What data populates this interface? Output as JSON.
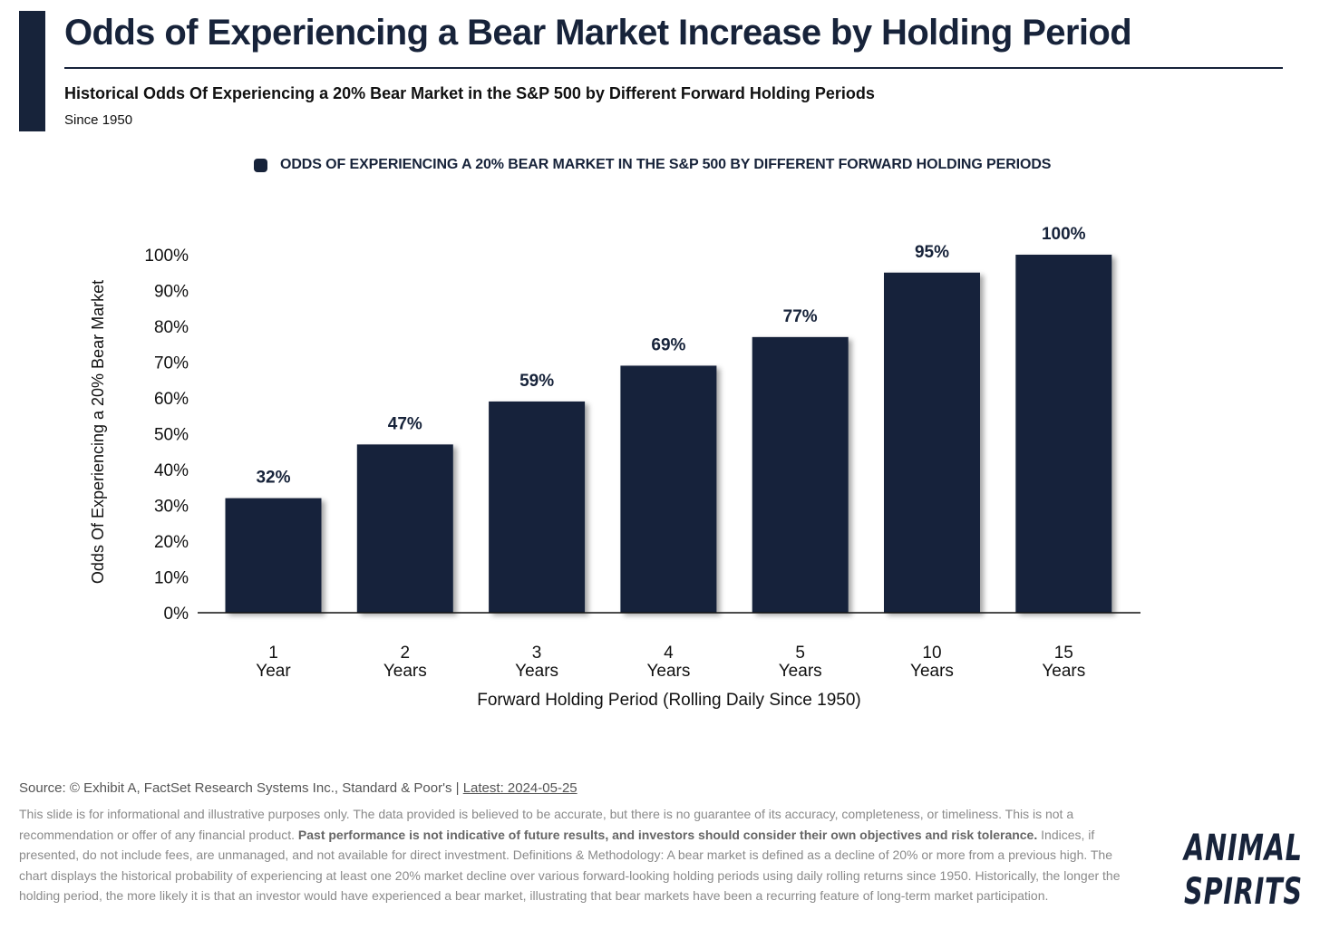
{
  "header": {
    "title": "Odds of Experiencing a Bear Market Increase by Holding Period",
    "subtitle": "Historical Odds Of Experiencing a 20% Bear Market in the S&P 500 by Different Forward Holding Periods",
    "since": "Since 1950"
  },
  "legend": {
    "label": "ODDS OF EXPERIENCING A 20% BEAR MARKET IN THE S&P 500 BY DIFFERENT FORWARD HOLDING PERIODS"
  },
  "chart_data": {
    "type": "bar",
    "categories": [
      [
        "1",
        "Year"
      ],
      [
        "2",
        "Years"
      ],
      [
        "3",
        "Years"
      ],
      [
        "4",
        "Years"
      ],
      [
        "5",
        "Years"
      ],
      [
        "10",
        "Years"
      ],
      [
        "15",
        "Years"
      ]
    ],
    "series": [
      {
        "name": "ODDS OF EXPERIENCING A 20% BEAR MARKET IN THE S&P 500 BY DIFFERENT FORWARD HOLDING PERIODS",
        "values": [
          32,
          47,
          59,
          69,
          77,
          95,
          100
        ]
      }
    ],
    "data_labels": [
      "32%",
      "47%",
      "59%",
      "69%",
      "77%",
      "95%",
      "100%"
    ],
    "ylabel": "Odds Of Experiencing a 20% Bear Market",
    "xlabel": "Forward Holding Period (Rolling Daily Since 1950)",
    "ylim": [
      0,
      100
    ],
    "yticks": [
      "0%",
      "10%",
      "20%",
      "30%",
      "40%",
      "50%",
      "60%",
      "70%",
      "80%",
      "90%",
      "100%"
    ],
    "legend_position": "top",
    "grid": false,
    "colors": {
      "bar": "#17233a",
      "text": "#111111"
    }
  },
  "footer": {
    "source": "Source: © Exhibit A, FactSet Research Systems Inc., Standard & Poor's | ",
    "latest": "Latest: 2024-05-25",
    "disclaimer_1": "This slide is for informational and illustrative purposes only. The data provided is believed to be accurate, but there is no guarantee of its accuracy, completeness, or timeliness. This is not a recommendation or offer of any financial product. ",
    "disclaimer_bold": "Past performance is not indicative of future results, and investors should consider their own objectives and risk tolerance.",
    "disclaimer_2": " Indices, if presented, do not include fees, are unmanaged, and not available for direct investment. Definitions & Methodology: A bear market is defined as a decline of 20% or more from a previous high. The chart displays the historical probability of experiencing at least one 20% market decline over various forward-looking holding periods using daily rolling returns since 1950. Historically, the longer the holding period, the more likely it is that an investor would have experienced a bear market, illustrating that bear markets have been a recurring feature of long-term market participation."
  },
  "logo": {
    "line1": "ANIMAL",
    "line2": "SPIRITS"
  },
  "colors": {
    "accent": "#17233a",
    "footer_text": "#8a8a8a"
  }
}
